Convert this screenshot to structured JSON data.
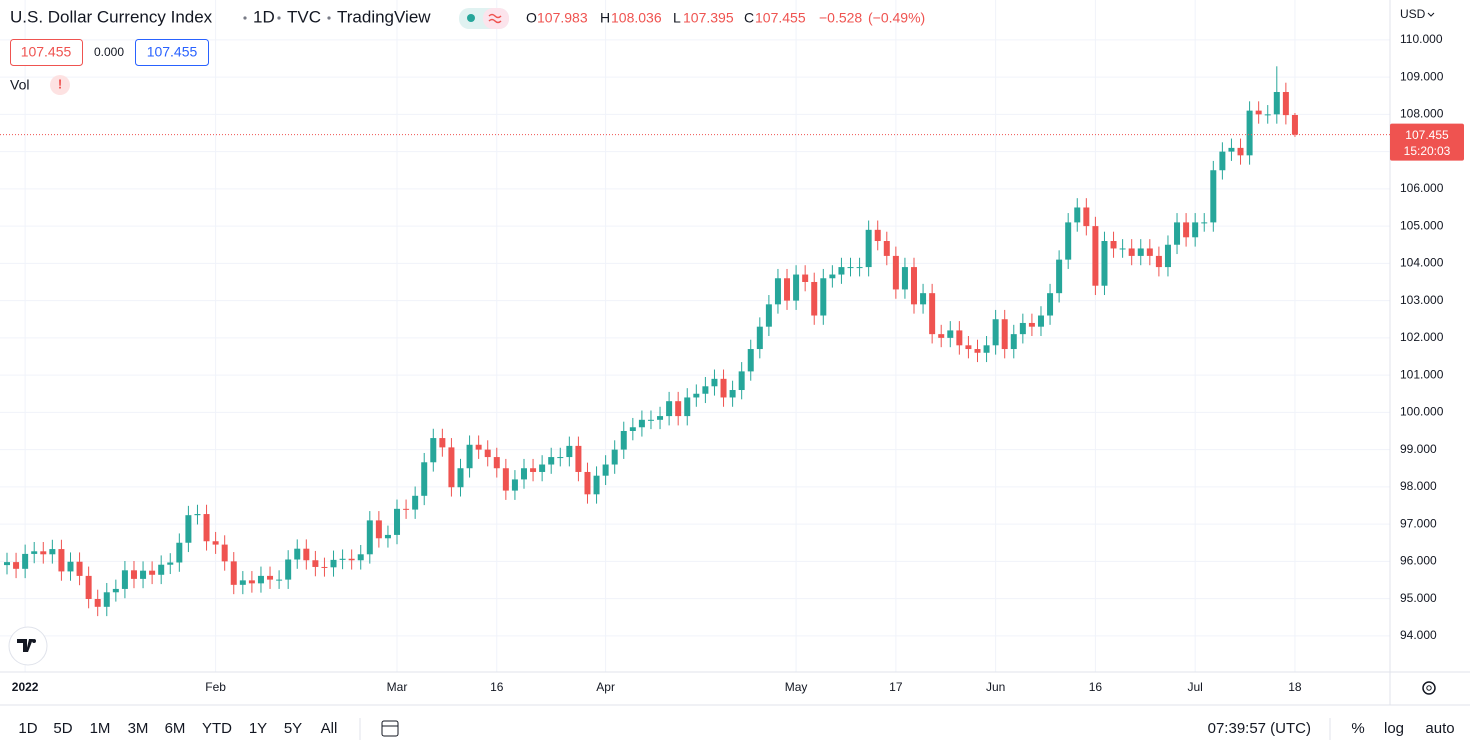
{
  "header": {
    "title": "U.S. Dollar Currency Index",
    "interval": "1D",
    "exchange": "TVC",
    "source": "TradingView",
    "ohlc_letters": [
      "O",
      "H",
      "L",
      "C"
    ],
    "change": {
      "value": -0.528,
      "label": "−0.528"
    },
    "change_pct": {
      "value": -0.49,
      "label": "(−0.49%)"
    },
    "bid": 107.455,
    "spread": {
      "value": 0,
      "label": "0.000"
    },
    "ask": 107.455,
    "volume_label": "Vol",
    "warning": "!"
  },
  "axis": {
    "currency": "USD",
    "countdown": "15:20:03"
  },
  "toolbar": {
    "ranges": [
      "1D",
      "5D",
      "1M",
      "3M",
      "6M",
      "YTD",
      "1Y",
      "5Y",
      "All"
    ],
    "clock": "07:39:57 (UTC)",
    "options": [
      "%",
      "log",
      "auto"
    ]
  },
  "chart_data": {
    "type": "candlestick",
    "up_color": "#26a69a",
    "down_color": "#ef5350",
    "grid": true,
    "ylim": [
      93.03,
      111.07
    ],
    "yticks": [
      {
        "value": 94,
        "label": "94.000"
      },
      {
        "value": 95,
        "label": "95.000"
      },
      {
        "value": 96,
        "label": "96.000"
      },
      {
        "value": 97,
        "label": "97.000"
      },
      {
        "value": 98,
        "label": "98.000"
      },
      {
        "value": 99,
        "label": "99.000"
      },
      {
        "value": 100,
        "label": "100.000"
      },
      {
        "value": 101,
        "label": "101.000"
      },
      {
        "value": 102,
        "label": "102.000"
      },
      {
        "value": 103,
        "label": "103.000"
      },
      {
        "value": 104,
        "label": "104.000"
      },
      {
        "value": 105,
        "label": "105.000"
      },
      {
        "value": 106,
        "label": "106.000"
      },
      {
        "value": 107,
        "label": "107.000"
      },
      {
        "value": 108,
        "label": "108.000"
      },
      {
        "value": 109,
        "label": "109.000"
      },
      {
        "value": 110,
        "label": "110.000"
      }
    ],
    "categories": [
      null,
      null,
      "2022",
      null,
      null,
      null,
      null,
      null,
      null,
      null,
      null,
      null,
      null,
      null,
      null,
      null,
      null,
      null,
      null,
      null,
      null,
      null,
      null,
      "Feb",
      null,
      null,
      null,
      null,
      null,
      null,
      null,
      null,
      null,
      null,
      null,
      null,
      null,
      null,
      null,
      null,
      null,
      null,
      null,
      "Mar",
      null,
      null,
      null,
      null,
      null,
      null,
      null,
      null,
      null,
      null,
      "16",
      null,
      null,
      null,
      null,
      null,
      null,
      null,
      null,
      null,
      null,
      null,
      "Apr",
      null,
      null,
      null,
      null,
      null,
      null,
      null,
      null,
      null,
      null,
      null,
      null,
      null,
      null,
      null,
      null,
      null,
      null,
      null,
      null,
      "May",
      null,
      null,
      null,
      null,
      null,
      null,
      null,
      null,
      null,
      null,
      "17",
      null,
      null,
      null,
      null,
      null,
      null,
      null,
      null,
      null,
      null,
      "Jun",
      null,
      null,
      null,
      null,
      null,
      null,
      null,
      null,
      null,
      null,
      "16",
      null,
      null,
      null,
      null,
      null,
      null,
      null,
      null,
      null,
      null,
      "Jul",
      null,
      null,
      null,
      null,
      null,
      null,
      null,
      null,
      null,
      null,
      "18"
    ],
    "open": [
      95.9,
      95.98,
      95.8,
      96.2,
      96.27,
      96.19,
      96.33,
      95.73,
      95.99,
      95.61,
      94.99,
      94.78,
      95.17,
      95.26,
      95.76,
      95.53,
      95.75,
      95.64,
      95.91,
      95.97,
      96.5,
      97.24,
      97.27,
      96.54,
      96.45,
      96.0,
      95.37,
      95.49,
      95.41,
      95.61,
      95.51,
      95.51,
      96.05,
      96.34,
      96.03,
      95.85,
      95.84,
      96.04,
      96.07,
      96.03,
      96.19,
      97.1,
      96.62,
      96.71,
      97.41,
      97.39,
      97.76,
      98.66,
      99.31,
      99.06,
      97.99,
      98.5,
      99.13,
      99.0,
      98.8,
      98.5,
      97.9,
      98.2,
      98.5,
      98.4,
      98.6,
      98.8,
      98.8,
      99.1,
      98.4,
      97.8,
      98.3,
      98.6,
      99.0,
      99.5,
      99.6,
      99.8,
      99.8,
      99.9,
      100.3,
      99.9,
      100.4,
      100.5,
      100.7,
      100.9,
      100.4,
      100.6,
      101.1,
      101.7,
      102.3,
      102.9,
      103.6,
      103.0,
      103.7,
      103.5,
      102.6,
      103.6,
      103.7,
      103.9,
      103.9,
      103.9,
      104.9,
      104.6,
      104.2,
      103.3,
      103.9,
      102.9,
      103.2,
      102.1,
      102.0,
      102.2,
      101.8,
      101.7,
      101.6,
      101.8,
      102.5,
      101.7,
      102.1,
      102.4,
      102.3,
      102.6,
      103.2,
      104.1,
      105.1,
      105.5,
      105.0,
      103.4,
      104.6,
      104.4,
      104.4,
      104.2,
      104.4,
      104.2,
      103.9,
      104.5,
      105.1,
      104.7,
      105.1,
      105.1,
      106.5,
      107.0,
      107.1,
      106.9,
      108.1,
      108.0,
      108.0,
      108.6,
      107.983
    ],
    "high": [
      96.23,
      96.23,
      96.45,
      96.52,
      96.52,
      96.58,
      96.58,
      96.24,
      96.24,
      95.86,
      95.24,
      95.42,
      95.51,
      96.01,
      96.01,
      96.0,
      96.0,
      96.16,
      96.22,
      96.75,
      97.49,
      97.52,
      97.52,
      96.79,
      96.7,
      96.25,
      95.74,
      95.74,
      95.86,
      95.86,
      95.76,
      96.3,
      96.59,
      96.59,
      96.28,
      96.1,
      96.29,
      96.32,
      96.32,
      96.44,
      97.35,
      97.35,
      96.96,
      97.66,
      97.66,
      98.01,
      98.91,
      99.56,
      99.56,
      99.31,
      98.75,
      99.38,
      99.38,
      99.25,
      99.05,
      98.75,
      98.45,
      98.75,
      98.75,
      98.85,
      99.05,
      99.05,
      99.35,
      99.35,
      98.65,
      98.55,
      98.85,
      99.25,
      99.75,
      99.85,
      100.05,
      100.05,
      100.15,
      100.55,
      100.55,
      100.65,
      100.75,
      100.95,
      101.15,
      101.15,
      100.85,
      101.35,
      101.95,
      102.55,
      103.15,
      103.85,
      103.85,
      103.95,
      103.95,
      103.75,
      103.85,
      103.95,
      104.15,
      104.15,
      104.15,
      105.15,
      105.15,
      104.85,
      104.45,
      104.15,
      104.15,
      103.45,
      103.45,
      102.35,
      102.45,
      102.45,
      102.05,
      101.95,
      102.05,
      102.75,
      102.75,
      102.35,
      102.65,
      102.65,
      102.85,
      103.45,
      104.35,
      105.35,
      105.75,
      105.75,
      105.25,
      104.85,
      104.85,
      104.65,
      104.65,
      104.65,
      104.65,
      104.45,
      104.75,
      105.35,
      105.35,
      105.35,
      105.35,
      106.75,
      107.25,
      107.35,
      107.35,
      108.35,
      108.35,
      108.25,
      109.29,
      108.85,
      108.036
    ],
    "low": [
      95.65,
      95.55,
      95.55,
      95.95,
      95.94,
      95.94,
      95.48,
      95.48,
      95.36,
      94.74,
      94.53,
      94.53,
      94.92,
      95.01,
      95.28,
      95.28,
      95.39,
      95.39,
      95.66,
      95.72,
      96.25,
      96.99,
      96.29,
      96.2,
      95.75,
      95.12,
      95.12,
      95.16,
      95.16,
      95.26,
      95.26,
      95.26,
      95.8,
      95.78,
      95.6,
      95.59,
      95.59,
      95.79,
      95.78,
      95.78,
      95.94,
      96.37,
      96.37,
      96.46,
      97.14,
      97.14,
      97.51,
      98.41,
      98.81,
      97.74,
      97.74,
      98.25,
      98.75,
      98.55,
      98.25,
      97.65,
      97.65,
      97.95,
      98.15,
      98.15,
      98.35,
      98.55,
      98.55,
      98.15,
      97.55,
      97.55,
      98.05,
      98.35,
      98.75,
      99.25,
      99.35,
      99.55,
      99.55,
      99.65,
      99.65,
      99.65,
      100.15,
      100.25,
      100.45,
      100.15,
      100.15,
      100.35,
      100.85,
      101.45,
      102.05,
      102.65,
      102.75,
      102.75,
      103.25,
      102.35,
      102.35,
      103.35,
      103.45,
      103.65,
      103.65,
      103.65,
      104.35,
      103.95,
      103.05,
      103.05,
      102.65,
      102.65,
      101.85,
      101.75,
      101.75,
      101.55,
      101.45,
      101.35,
      101.35,
      101.55,
      101.45,
      101.45,
      101.85,
      102.05,
      102.05,
      102.35,
      102.95,
      103.85,
      104.85,
      104.75,
      103.15,
      103.15,
      104.15,
      104.15,
      103.95,
      103.95,
      103.95,
      103.65,
      103.65,
      104.25,
      104.45,
      104.45,
      104.85,
      104.85,
      106.25,
      106.75,
      106.65,
      106.65,
      107.75,
      107.75,
      107.75,
      107.73,
      107.395
    ],
    "close": [
      95.98,
      95.8,
      96.2,
      96.27,
      96.19,
      96.33,
      95.73,
      95.99,
      95.61,
      94.99,
      94.78,
      95.17,
      95.26,
      95.76,
      95.53,
      95.75,
      95.64,
      95.91,
      95.97,
      96.5,
      97.24,
      97.27,
      96.54,
      96.45,
      96.0,
      95.37,
      95.49,
      95.41,
      95.61,
      95.51,
      95.51,
      96.05,
      96.34,
      96.03,
      95.85,
      95.84,
      96.04,
      96.07,
      96.03,
      96.19,
      97.1,
      96.62,
      96.71,
      97.41,
      97.39,
      97.76,
      98.66,
      99.31,
      99.06,
      97.99,
      98.5,
      99.13,
      99.0,
      98.8,
      98.5,
      97.9,
      98.2,
      98.5,
      98.4,
      98.6,
      98.8,
      98.8,
      99.1,
      98.4,
      97.8,
      98.3,
      98.6,
      99.0,
      99.5,
      99.6,
      99.8,
      99.8,
      99.9,
      100.3,
      99.9,
      100.4,
      100.5,
      100.7,
      100.9,
      100.4,
      100.6,
      101.1,
      101.7,
      102.3,
      102.9,
      103.6,
      103.0,
      103.7,
      103.5,
      102.6,
      103.6,
      103.7,
      103.9,
      103.9,
      103.9,
      104.9,
      104.6,
      104.2,
      103.3,
      103.9,
      102.9,
      103.2,
      102.1,
      102.0,
      102.2,
      101.8,
      101.7,
      101.6,
      101.8,
      102.5,
      101.7,
      102.1,
      102.4,
      102.3,
      102.6,
      103.2,
      104.1,
      105.1,
      105.5,
      105.0,
      103.4,
      104.6,
      104.4,
      104.4,
      104.2,
      104.4,
      104.2,
      103.9,
      104.5,
      105.1,
      104.7,
      105.1,
      105.1,
      106.5,
      107.0,
      107.1,
      106.9,
      108.1,
      108.0,
      108.0,
      108.6,
      107.98,
      107.455
    ]
  }
}
